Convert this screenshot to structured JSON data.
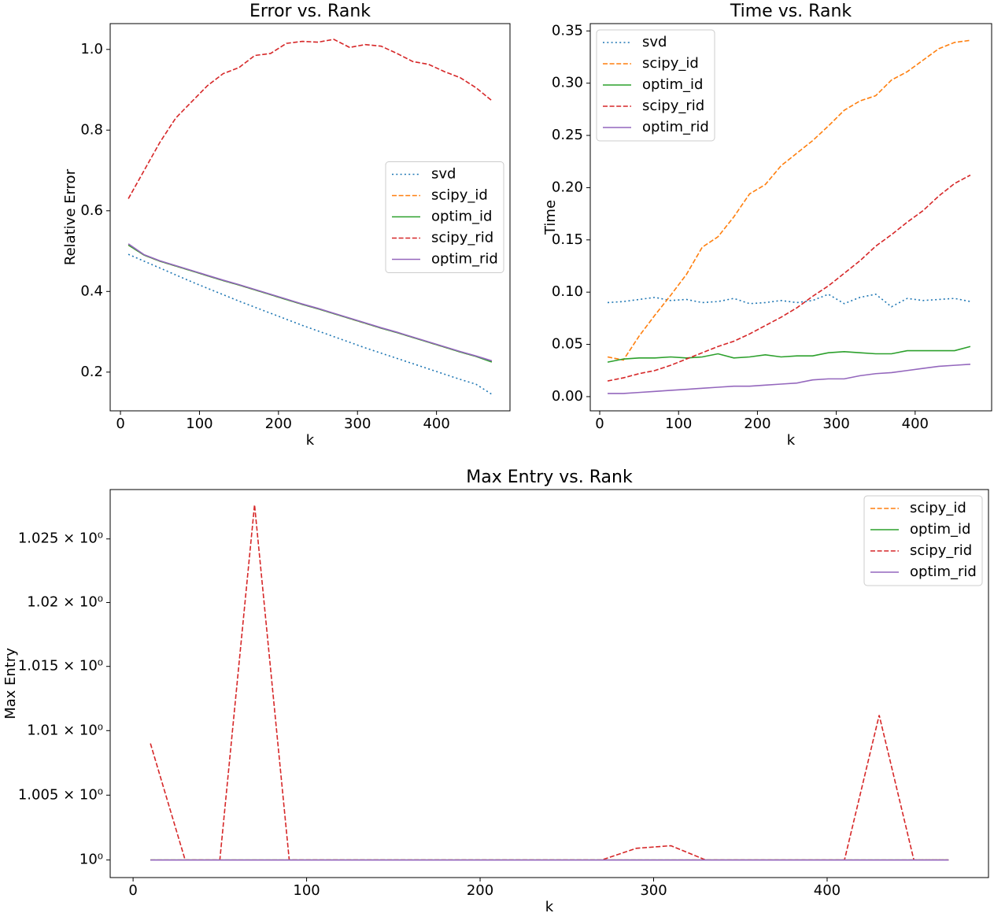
{
  "chart_data": [
    {
      "type": "line",
      "title": "Error vs. Rank",
      "x_label": "k",
      "y_label": "Relative Error",
      "x": [
        10,
        30,
        50,
        70,
        90,
        110,
        130,
        150,
        170,
        190,
        210,
        230,
        250,
        270,
        290,
        310,
        330,
        350,
        370,
        390,
        410,
        430,
        450,
        470
      ],
      "series": [
        {
          "name": "svd",
          "color": "#1f77b4",
          "style": "dotted",
          "values": [
            0.492,
            0.475,
            0.458,
            0.441,
            0.424,
            0.408,
            0.392,
            0.376,
            0.361,
            0.346,
            0.331,
            0.316,
            0.302,
            0.288,
            0.274,
            0.26,
            0.247,
            0.234,
            0.221,
            0.208,
            0.195,
            0.182,
            0.17,
            0.145
          ]
        },
        {
          "name": "scipy_id",
          "color": "#ff7f0e",
          "style": "dashed",
          "values": [
            0.515,
            0.49,
            0.475,
            0.463,
            0.451,
            0.439,
            0.427,
            0.416,
            0.404,
            0.392,
            0.38,
            0.368,
            0.357,
            0.345,
            0.333,
            0.321,
            0.309,
            0.298,
            0.286,
            0.274,
            0.262,
            0.25,
            0.239,
            0.227
          ]
        },
        {
          "name": "optim_id",
          "color": "#2ca02c",
          "style": "solid",
          "values": [
            0.515,
            0.49,
            0.475,
            0.463,
            0.451,
            0.439,
            0.427,
            0.416,
            0.404,
            0.392,
            0.38,
            0.368,
            0.357,
            0.345,
            0.333,
            0.321,
            0.309,
            0.298,
            0.286,
            0.274,
            0.262,
            0.25,
            0.239,
            0.225
          ]
        },
        {
          "name": "scipy_rid",
          "color": "#d62728",
          "style": "dashed",
          "values": [
            0.63,
            0.7,
            0.77,
            0.83,
            0.87,
            0.91,
            0.94,
            0.955,
            0.985,
            0.99,
            1.015,
            1.02,
            1.018,
            1.025,
            1.005,
            1.012,
            1.008,
            0.99,
            0.97,
            0.963,
            0.945,
            0.93,
            0.905,
            0.873
          ]
        },
        {
          "name": "optim_rid",
          "color": "#9467bd",
          "style": "solid",
          "values": [
            0.518,
            0.491,
            0.476,
            0.464,
            0.452,
            0.44,
            0.428,
            0.417,
            0.405,
            0.393,
            0.381,
            0.369,
            0.358,
            0.346,
            0.334,
            0.322,
            0.31,
            0.299,
            0.287,
            0.275,
            0.263,
            0.251,
            0.24,
            0.228
          ]
        }
      ],
      "xlim": [
        -13,
        493
      ],
      "xticks": [
        0,
        100,
        200,
        300,
        400
      ],
      "ylim": [
        0.104,
        1.064
      ],
      "yticks": [
        0.2,
        0.4,
        0.6,
        0.8,
        {
          "value": 1,
          "label": "1.0"
        }
      ],
      "legend": "center right"
    },
    {
      "type": "line",
      "title": "Time vs. Rank",
      "x_label": "k",
      "y_label": "Time",
      "x": [
        10,
        30,
        50,
        70,
        90,
        110,
        130,
        150,
        170,
        190,
        210,
        230,
        250,
        270,
        290,
        310,
        330,
        350,
        370,
        390,
        410,
        430,
        450,
        470
      ],
      "series": [
        {
          "name": "svd",
          "color": "#1f77b4",
          "style": "dotted",
          "values": [
            0.09,
            0.091,
            0.093,
            0.095,
            0.092,
            0.093,
            0.09,
            0.091,
            0.094,
            0.089,
            0.09,
            0.092,
            0.09,
            0.092,
            0.098,
            0.089,
            0.095,
            0.098,
            0.086,
            0.094,
            0.092,
            0.093,
            0.094,
            0.091
          ]
        },
        {
          "name": "scipy_id",
          "color": "#ff7f0e",
          "style": "dashed",
          "values": [
            0.038,
            0.035,
            0.058,
            0.078,
            0.097,
            0.117,
            0.143,
            0.153,
            0.172,
            0.194,
            0.203,
            0.221,
            0.233,
            0.245,
            0.259,
            0.274,
            0.283,
            0.288,
            0.303,
            0.311,
            0.322,
            0.333,
            0.339,
            0.341
          ]
        },
        {
          "name": "optim_id",
          "color": "#2ca02c",
          "style": "solid",
          "values": [
            0.033,
            0.036,
            0.037,
            0.037,
            0.038,
            0.037,
            0.038,
            0.041,
            0.037,
            0.038,
            0.04,
            0.038,
            0.039,
            0.039,
            0.042,
            0.043,
            0.042,
            0.041,
            0.041,
            0.044,
            0.044,
            0.044,
            0.044,
            0.048
          ]
        },
        {
          "name": "scipy_rid",
          "color": "#d62728",
          "style": "dashed",
          "values": [
            0.015,
            0.018,
            0.022,
            0.025,
            0.03,
            0.036,
            0.042,
            0.048,
            0.053,
            0.06,
            0.068,
            0.076,
            0.085,
            0.096,
            0.106,
            0.118,
            0.13,
            0.144,
            0.155,
            0.167,
            0.178,
            0.192,
            0.204,
            0.212
          ]
        },
        {
          "name": "optim_rid",
          "color": "#9467bd",
          "style": "solid",
          "values": [
            0.003,
            0.003,
            0.004,
            0.005,
            0.006,
            0.007,
            0.008,
            0.009,
            0.01,
            0.01,
            0.011,
            0.012,
            0.013,
            0.016,
            0.017,
            0.017,
            0.02,
            0.022,
            0.023,
            0.025,
            0.027,
            0.029,
            0.03,
            0.031
          ]
        }
      ],
      "xlim": [
        -12,
        497
      ],
      "xticks": [
        0,
        100,
        200,
        300,
        400
      ],
      "ylim": [
        -0.0136,
        0.357
      ],
      "yticks": [
        {
          "value": 0,
          "label": "0.00"
        },
        {
          "value": 0.05,
          "label": "0.05"
        },
        {
          "value": 0.1,
          "label": "0.10"
        },
        {
          "value": 0.15,
          "label": "0.15"
        },
        {
          "value": 0.2,
          "label": "0.20"
        },
        {
          "value": 0.25,
          "label": "0.25"
        },
        {
          "value": 0.3,
          "label": "0.30"
        },
        {
          "value": 0.35,
          "label": "0.35"
        }
      ],
      "legend": "upper left"
    },
    {
      "type": "line",
      "title": "Max Entry vs. Rank",
      "x_label": "k",
      "y_label": "Max Entry",
      "log_y": true,
      "x": [
        10,
        30,
        50,
        70,
        90,
        110,
        130,
        150,
        170,
        190,
        210,
        230,
        250,
        270,
        290,
        310,
        330,
        350,
        370,
        390,
        410,
        430,
        450,
        470
      ],
      "series": [
        {
          "name": "scipy_id",
          "color": "#ff7f0e",
          "style": "dashed",
          "values": [
            1,
            1,
            1,
            1,
            1,
            1,
            1,
            1,
            1,
            1,
            1,
            1,
            1,
            1,
            1,
            1,
            1,
            1,
            1,
            1,
            1,
            1,
            1,
            1
          ]
        },
        {
          "name": "optim_id",
          "color": "#2ca02c",
          "style": "solid",
          "values": [
            1,
            1,
            1,
            1,
            1,
            1,
            1,
            1,
            1,
            1,
            1,
            1,
            1,
            1,
            1,
            1,
            1,
            1,
            1,
            1,
            1,
            1,
            1,
            1
          ]
        },
        {
          "name": "scipy_rid",
          "color": "#d62728",
          "style": "dashed",
          "values": [
            1.009,
            1,
            1,
            1.0277,
            1,
            1,
            1,
            1,
            1,
            1,
            1,
            1,
            1,
            1,
            1.0009,
            1.0011,
            1,
            1,
            1,
            1,
            1,
            1.0112,
            1,
            1
          ]
        },
        {
          "name": "optim_rid",
          "color": "#9467bd",
          "style": "solid",
          "values": [
            1,
            1,
            1,
            1,
            1,
            1,
            1,
            1,
            1,
            1,
            1,
            1,
            1,
            1,
            1,
            1,
            1,
            1,
            1,
            1,
            1,
            1,
            1,
            1
          ]
        }
      ],
      "xlim": [
        -13.2,
        493
      ],
      "xticks": [
        0,
        100,
        200,
        300,
        400
      ],
      "ylim": [
        0.99865,
        1.0289
      ],
      "yticks": [
        {
          "value": 1,
          "label": "10⁰"
        },
        {
          "value": 1.005,
          "label": "1.005 × 10⁰"
        },
        {
          "value": 1.01,
          "label": "1.01 × 10⁰"
        },
        {
          "value": 1.015,
          "label": "1.015 × 10⁰"
        },
        {
          "value": 1.02,
          "label": "1.02 × 10⁰"
        },
        {
          "value": 1.025,
          "label": "1.025 × 10⁰"
        }
      ],
      "legend": "upper right"
    }
  ]
}
